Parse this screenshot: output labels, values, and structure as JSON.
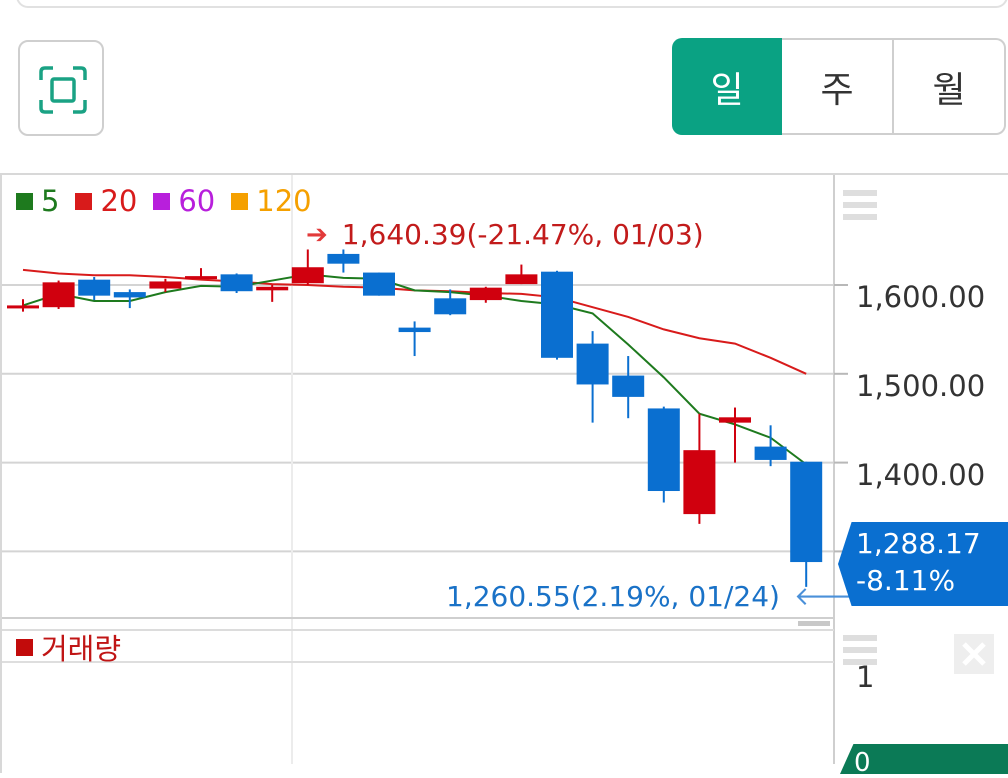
{
  "toolbar": {
    "fullscreen_icon": "fullscreen-frame-icon",
    "periods": [
      {
        "label": "일",
        "selected": true
      },
      {
        "label": "주",
        "selected": false
      },
      {
        "label": "월",
        "selected": false
      }
    ],
    "accent_color": "#0aa283"
  },
  "legend": [
    {
      "label": "5",
      "color": "#1e7a1e"
    },
    {
      "label": "20",
      "color": "#d81b1b"
    },
    {
      "label": "60",
      "color": "#b81fdc"
    },
    {
      "label": "120",
      "color": "#f5a000"
    }
  ],
  "annotations": {
    "high": "1,640.39(-21.47%, 01/03)",
    "low": "1,260.55(2.19%, 01/24)"
  },
  "price_axis": [
    "1,600.00",
    "1,500.00",
    "1,400.00"
  ],
  "current_price": {
    "price": "1,288.17",
    "change": "-8.11%",
    "color": "#0a6fd0"
  },
  "volume": {
    "legend_label": "거래량",
    "axis_label": "1",
    "current_label": "0"
  },
  "colors": {
    "up": "#d0000e",
    "down": "#0a6fd0",
    "ma5": "#1e7a1e",
    "ma20": "#d81b1b"
  },
  "chart_data": {
    "type": "candlestick",
    "ylim": [
      1230,
      1690
    ],
    "yticks": [
      1600,
      1500,
      1400,
      1300
    ],
    "candles": [
      {
        "o": 1577,
        "h": 1584,
        "l": 1570,
        "c": 1577
      },
      {
        "o": 1575,
        "h": 1605,
        "l": 1573,
        "c": 1603
      },
      {
        "o": 1606,
        "h": 1609,
        "l": 1583,
        "c": 1588
      },
      {
        "o": 1592,
        "h": 1595,
        "l": 1574,
        "c": 1586
      },
      {
        "o": 1596,
        "h": 1607,
        "l": 1592,
        "c": 1604
      },
      {
        "o": 1610,
        "h": 1619,
        "l": 1608,
        "c": 1610
      },
      {
        "o": 1612,
        "h": 1613,
        "l": 1591,
        "c": 1593
      },
      {
        "o": 1594,
        "h": 1600,
        "l": 1581,
        "c": 1598
      },
      {
        "o": 1602,
        "h": 1640,
        "l": 1600,
        "c": 1620
      },
      {
        "o": 1635,
        "h": 1640,
        "l": 1614,
        "c": 1624
      },
      {
        "o": 1614,
        "h": 1614,
        "l": 1588,
        "c": 1588
      },
      {
        "o": 1552,
        "h": 1559,
        "l": 1520,
        "c": 1547
      },
      {
        "o": 1585,
        "h": 1595,
        "l": 1566,
        "c": 1567
      },
      {
        "o": 1583,
        "h": 1598,
        "l": 1580,
        "c": 1597
      },
      {
        "o": 1601,
        "h": 1623,
        "l": 1601,
        "c": 1612
      },
      {
        "o": 1615,
        "h": 1616,
        "l": 1516,
        "c": 1518
      },
      {
        "o": 1534,
        "h": 1548,
        "l": 1445,
        "c": 1488
      },
      {
        "o": 1498,
        "h": 1520,
        "l": 1450,
        "c": 1474
      },
      {
        "o": 1461,
        "h": 1463,
        "l": 1355,
        "c": 1368
      },
      {
        "o": 1342,
        "h": 1455,
        "l": 1331,
        "c": 1414
      },
      {
        "o": 1445,
        "h": 1462,
        "l": 1400,
        "c": 1451
      },
      {
        "o": 1418,
        "h": 1442,
        "l": 1396,
        "c": 1403
      },
      {
        "o": 1401,
        "h": 1401,
        "l": 1260,
        "c": 1288
      }
    ],
    "ma5": [
      1577,
      1590,
      1582,
      1582,
      1592,
      1599,
      1598,
      1605,
      1612,
      1608,
      1607,
      1594,
      1592,
      1588,
      1582,
      1578,
      1568,
      1533,
      1496,
      1455,
      1443,
      1428,
      1398
    ],
    "ma20": [
      1617,
      1613,
      1611,
      1611,
      1609,
      1606,
      1604,
      1601,
      1600,
      1598,
      1597,
      1594,
      1593,
      1591,
      1590,
      1586,
      1575,
      1564,
      1550,
      1540,
      1534,
      1518,
      1500
    ]
  }
}
